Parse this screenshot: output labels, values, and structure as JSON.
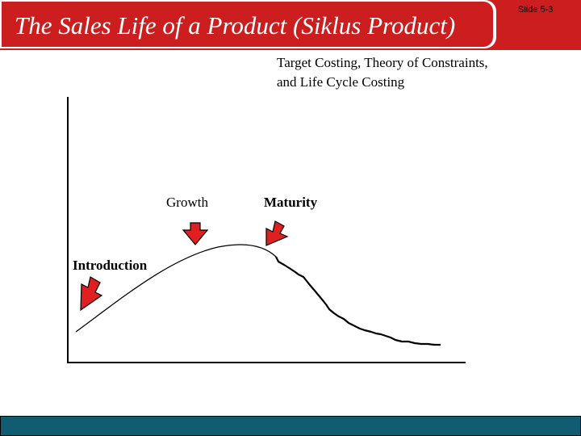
{
  "header": {
    "title": "The Sales Life of a Product (Siklus Product)",
    "slide_number": "Slide 5-3"
  },
  "subtitle": {
    "line1": "Target Costing, Theory of Constraints,",
    "line2": "and Life Cycle Costing"
  },
  "stages": {
    "introduction": "Introduction",
    "growth": "Growth",
    "maturity": "Maturity"
  },
  "colors": {
    "title_bar": "#cc1e1e",
    "footer_bar": "#115c70",
    "arrow_fill": "#e02020"
  }
}
